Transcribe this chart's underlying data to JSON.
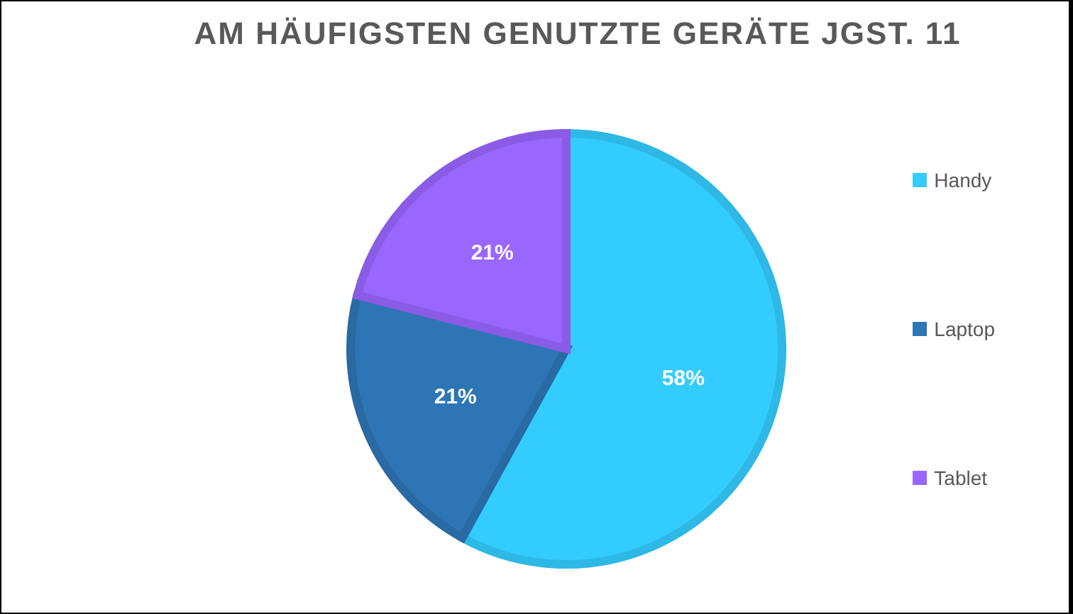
{
  "chart_data": {
    "type": "pie",
    "title": "AM HÄUFIGSTEN GENUTZTE GERÄTE JGST. 11",
    "categories": [
      "Handy",
      "Laptop",
      "Tablet"
    ],
    "values": [
      58,
      21,
      21
    ],
    "value_labels": [
      "58%",
      "21%",
      "21%"
    ],
    "colors": [
      "#33ccff",
      "#2e75b6",
      "#9966ff"
    ],
    "legend": "right"
  }
}
